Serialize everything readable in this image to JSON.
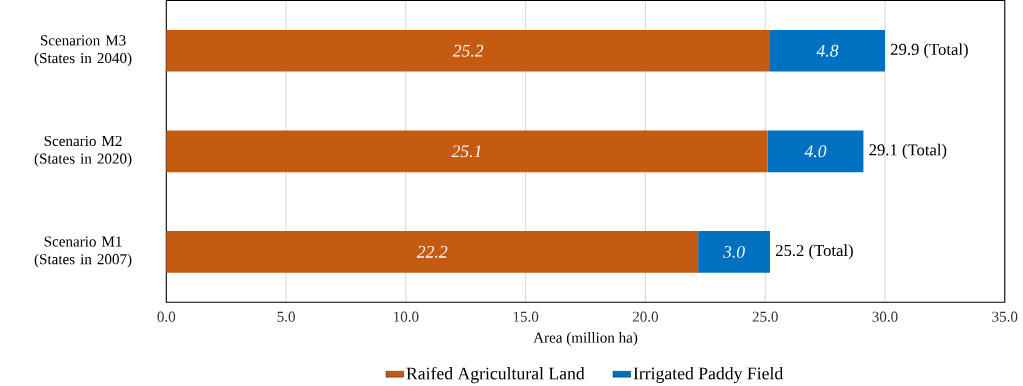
{
  "chart_data": {
    "type": "bar",
    "orientation": "horizontal",
    "stacked": true,
    "xlabel": "Area (million ha)",
    "categories": [
      "Scenarion M3 (States in 2040)",
      "Scenario M2 (States in 2020)",
      "Scenario M1 (States in 2007)"
    ],
    "series": [
      {
        "name": "Raifed Agricultural Land",
        "color": "#c55a11",
        "values": [
          25.2,
          25.1,
          22.2
        ],
        "value_labels": [
          "25.2",
          "25.1",
          "22.2"
        ]
      },
      {
        "name": "Irrigated Paddy Field",
        "color": "#0070c0",
        "values": [
          4.8,
          4.0,
          3.0
        ],
        "value_labels": [
          "4.8",
          "4.0",
          "3.0"
        ]
      }
    ],
    "totals": [
      "29.9 (Total)",
      "29.1 (Total)",
      "25.2 (Total)"
    ],
    "xlim": [
      0,
      35
    ],
    "xticks": [
      {
        "value": 0,
        "label": "0.0"
      },
      {
        "value": 5,
        "label": "5.0"
      },
      {
        "value": 10,
        "label": "10.0"
      },
      {
        "value": 15,
        "label": "15.0"
      },
      {
        "value": 20,
        "label": "20.0"
      },
      {
        "value": 25,
        "label": "25.0"
      },
      {
        "value": 30,
        "label": "30.0"
      },
      {
        "value": 35,
        "label": "35.0"
      }
    ],
    "grid": "x",
    "legend": "bottom"
  }
}
